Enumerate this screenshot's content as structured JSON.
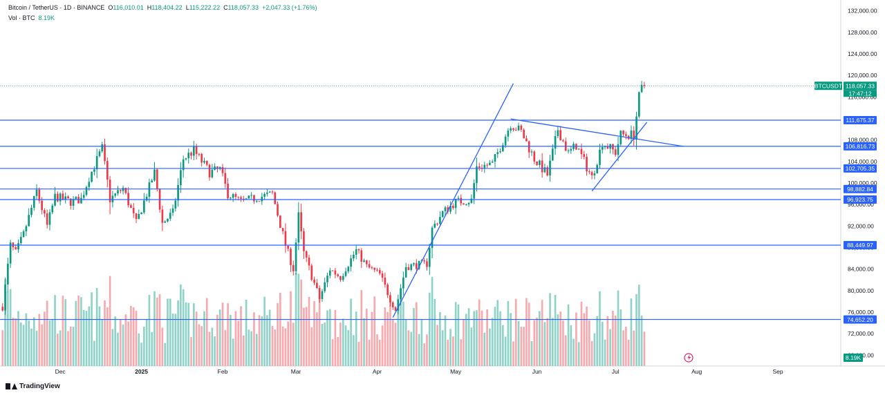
{
  "header": {
    "symbol": "Bitcoin / TetherUS · 1D · BINANCE",
    "open_label": "O",
    "open": "116,010.01",
    "high_label": "H",
    "high": "118,404.22",
    "low_label": "L",
    "low": "115,222.22",
    "close_label": "C",
    "close": "118,057.33",
    "change": "+2,047.33 (+1.76%)",
    "volume_label": "Vol · BTC",
    "volume": "8.19K"
  },
  "branding": {
    "logo_text": "TradingView"
  },
  "chart_data": {
    "type": "candlestick",
    "symbol": "BTCUSDT",
    "interval": "1D",
    "ylim": [
      66000,
      134000
    ],
    "y_ticks": [
      68000,
      72000,
      76000,
      80000,
      84000,
      88000,
      92000,
      96000,
      100000,
      104000,
      108000,
      112000,
      116000,
      120000,
      124000,
      128000,
      132000
    ],
    "y_tick_labels": [
      "68,000.00",
      "72,000.00",
      "76,000.00",
      "80,000.00",
      "84,000.00",
      "88,000.00",
      "92,000.00",
      "96,000.00",
      "100,000.00",
      "104,000.00",
      "108,000.00",
      "112,000.00",
      "116,000.00",
      "120,000.00",
      "124,000.00",
      "128,000.00",
      "132,000.00"
    ],
    "x_ticks": [
      {
        "date": "2024-12-01",
        "label": "Dec"
      },
      {
        "date": "2025-01-01",
        "label": "2025"
      },
      {
        "date": "2025-02-01",
        "label": "Feb"
      },
      {
        "date": "2025-03-01",
        "label": "Mar"
      },
      {
        "date": "2025-04-01",
        "label": "Apr"
      },
      {
        "date": "2025-05-01",
        "label": "May"
      },
      {
        "date": "2025-06-01",
        "label": "Jun"
      },
      {
        "date": "2025-07-01",
        "label": "Jul"
      },
      {
        "date": "2025-08-01",
        "label": "Aug"
      },
      {
        "date": "2025-09-01",
        "label": "Sep"
      }
    ],
    "xlim": [
      "2024-11-08",
      "2025-09-25"
    ],
    "price_levels": [
      {
        "value": 111675.37,
        "label": "111,675.37"
      },
      {
        "value": 106816.73,
        "label": "106,816.73"
      },
      {
        "value": 102705.35,
        "label": "102,705.35"
      },
      {
        "value": 98882.84,
        "label": "98,882.84"
      },
      {
        "value": 96923.75,
        "label": "96,923.75"
      },
      {
        "value": 88449.97,
        "label": "88,449.97"
      },
      {
        "value": 74652.2,
        "label": "74,652.20"
      }
    ],
    "last_price": {
      "symbol_label": "BTCUSDT",
      "value": 118057.33,
      "label": "118,057.33",
      "countdown": "17:47:12"
    },
    "volume_last": {
      "label": "8.19K"
    },
    "trendlines": [
      {
        "from": {
          "date": "2025-04-07",
          "price": 75000
        },
        "to": {
          "date": "2025-05-23",
          "price": 118500
        }
      },
      {
        "from": {
          "date": "2025-05-22",
          "price": 111900
        },
        "to": {
          "date": "2025-07-27",
          "price": 106800
        }
      },
      {
        "from": {
          "date": "2025-06-22",
          "price": 98500
        },
        "to": {
          "date": "2025-07-13",
          "price": 111300
        }
      }
    ],
    "up_color": "#089981",
    "down_color": "#f23645",
    "volume_up_color": "#8fd3c8",
    "volume_down_color": "#f7a9ae",
    "level_color": "#2962ff",
    "anchors": [
      [
        "2024-11-09",
        77000
      ],
      [
        "2024-11-12",
        88500
      ],
      [
        "2024-11-14",
        87000
      ],
      [
        "2024-11-17",
        90500
      ],
      [
        "2024-11-22",
        98500
      ],
      [
        "2024-11-26",
        92000
      ],
      [
        "2024-11-29",
        97500
      ],
      [
        "2024-12-05",
        96500
      ],
      [
        "2024-12-09",
        97000
      ],
      [
        "2024-12-12",
        101000
      ],
      [
        "2024-12-17",
        106500
      ],
      [
        "2024-12-20",
        97000
      ],
      [
        "2024-12-25",
        99000
      ],
      [
        "2024-12-30",
        92500
      ],
      [
        "2025-01-06",
        102000
      ],
      [
        "2025-01-09",
        92500
      ],
      [
        "2025-01-13",
        94500
      ],
      [
        "2025-01-17",
        104500
      ],
      [
        "2025-01-21",
        106000
      ],
      [
        "2025-01-27",
        102000
      ],
      [
        "2025-01-31",
        102500
      ],
      [
        "2025-02-03",
        98000
      ],
      [
        "2025-02-08",
        96500
      ],
      [
        "2025-02-20",
        98000
      ],
      [
        "2025-02-25",
        88500
      ],
      [
        "2025-02-28",
        84000
      ],
      [
        "2025-03-02",
        94000
      ],
      [
        "2025-03-04",
        87000
      ],
      [
        "2025-03-10",
        78500
      ],
      [
        "2025-03-14",
        84000
      ],
      [
        "2025-03-18",
        82500
      ],
      [
        "2025-03-24",
        87500
      ],
      [
        "2025-03-28",
        84500
      ],
      [
        "2025-04-02",
        83000
      ],
      [
        "2025-04-06",
        78500
      ],
      [
        "2025-04-08",
        76500
      ],
      [
        "2025-04-12",
        84500
      ],
      [
        "2025-04-20",
        85000
      ],
      [
        "2025-04-22",
        91500
      ],
      [
        "2025-04-26",
        94500
      ],
      [
        "2025-05-01",
        96500
      ],
      [
        "2025-05-07",
        96800
      ],
      [
        "2025-05-09",
        103000
      ],
      [
        "2025-05-15",
        103500
      ],
      [
        "2025-05-22",
        111000
      ],
      [
        "2025-05-26",
        109500
      ],
      [
        "2025-05-31",
        104500
      ],
      [
        "2025-06-05",
        101500
      ],
      [
        "2025-06-09",
        110000
      ],
      [
        "2025-06-13",
        105500
      ],
      [
        "2025-06-16",
        107000
      ],
      [
        "2025-06-20",
        103000
      ],
      [
        "2025-06-22",
        101000
      ],
      [
        "2025-06-26",
        107500
      ],
      [
        "2025-07-01",
        105700
      ],
      [
        "2025-07-03",
        109000
      ],
      [
        "2025-07-08",
        108900
      ],
      [
        "2025-07-10",
        116000
      ],
      [
        "2025-07-11",
        117500
      ],
      [
        "2025-07-12",
        118057.33
      ]
    ]
  }
}
